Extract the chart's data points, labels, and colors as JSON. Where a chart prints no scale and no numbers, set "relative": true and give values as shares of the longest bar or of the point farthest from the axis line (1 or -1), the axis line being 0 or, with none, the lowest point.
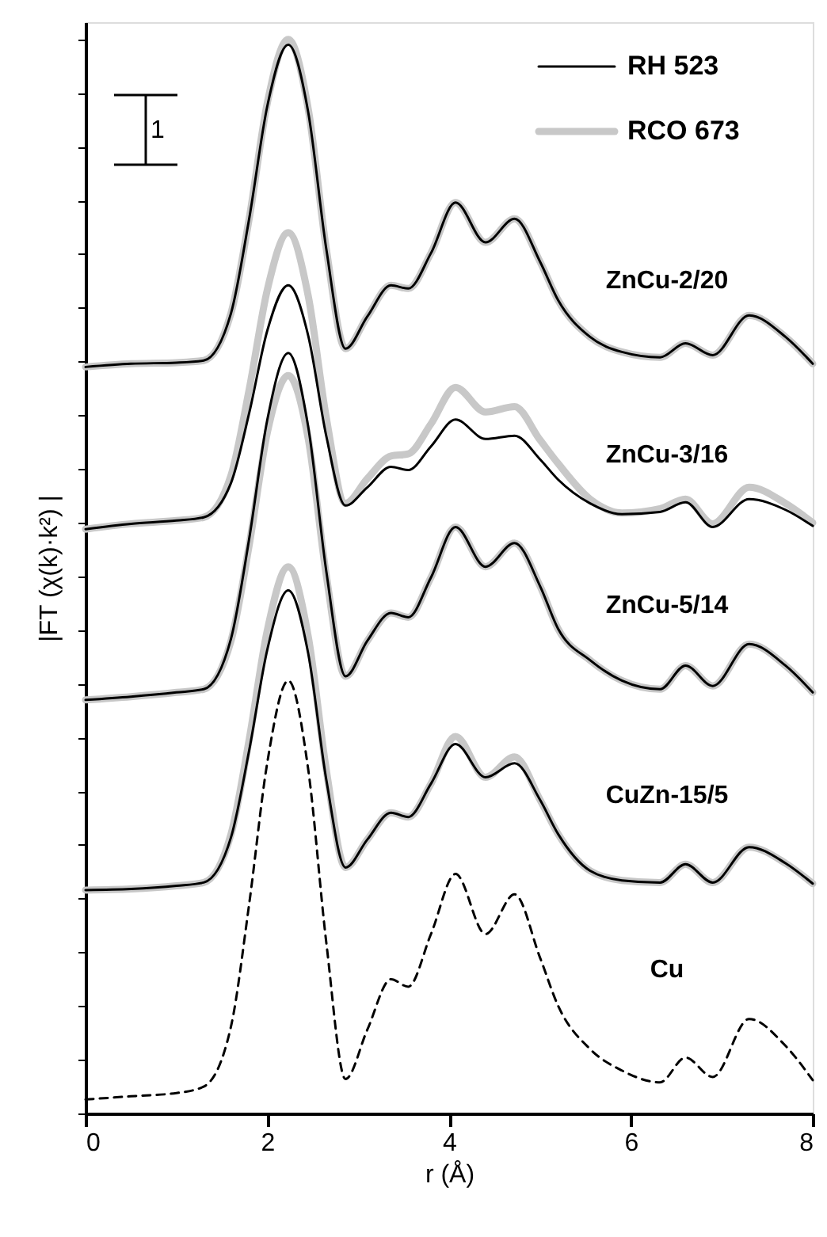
{
  "chart_data": {
    "type": "line",
    "relative": true,
    "xlabel": "r (Å)",
    "ylabel": "|FT (χ(k)·k²) |",
    "xlim": [
      0,
      8
    ],
    "xticks": [
      0,
      2,
      4,
      6,
      8
    ],
    "legend": "top right",
    "line_style": "solid",
    "marker": "none",
    "x": [
      0,
      0.5,
      1.0,
      1.3,
      1.6,
      1.8,
      2.0,
      2.23,
      2.45,
      2.65,
      2.86,
      3.1,
      3.36,
      3.55,
      3.8,
      4.07,
      4.4,
      4.72,
      5.0,
      5.2,
      5.55,
      5.9,
      6.32,
      6.6,
      6.9,
      7.3,
      7.7,
      8.0
    ],
    "series": [
      {
        "name": "RH 523",
        "color": "#000000",
        "values": [
          0.695,
          0.698,
          0.699,
          0.701,
          0.745,
          0.833,
          0.938,
          0.995,
          0.932,
          0.804,
          0.712,
          0.742,
          0.771,
          0.768,
          0.801,
          0.848,
          0.811,
          0.833,
          0.793,
          0.757,
          0.723,
          0.709,
          0.704,
          0.717,
          0.706,
          0.743,
          0.723,
          0.698
        ]
      },
      {
        "name": "RCO 673",
        "color": "#c8c8c8",
        "values": [
          0.695,
          0.698,
          0.699,
          0.701,
          0.745,
          0.833,
          0.941,
          1.0,
          0.935,
          0.804,
          0.712,
          0.742,
          0.771,
          0.768,
          0.801,
          0.848,
          0.811,
          0.833,
          0.793,
          0.757,
          0.723,
          0.709,
          0.704,
          0.717,
          0.706,
          0.743,
          0.723,
          0.698
        ]
      },
      {
        "color": "#000000",
        "values": [
          0.544,
          0.549,
          0.552,
          0.555,
          0.587,
          0.652,
          0.729,
          0.771,
          0.724,
          0.63,
          0.566,
          0.583,
          0.602,
          0.599,
          0.621,
          0.646,
          0.628,
          0.631,
          0.609,
          0.59,
          0.568,
          0.558,
          0.56,
          0.569,
          0.546,
          0.572,
          0.562,
          0.547
        ]
      },
      {
        "color": "#c8c8c8",
        "values": [
          0.544,
          0.549,
          0.552,
          0.555,
          0.594,
          0.674,
          0.767,
          0.82,
          0.761,
          0.647,
          0.568,
          0.591,
          0.612,
          0.614,
          0.642,
          0.676,
          0.653,
          0.658,
          0.627,
          0.605,
          0.572,
          0.559,
          0.563,
          0.572,
          0.549,
          0.583,
          0.568,
          0.55
        ]
      },
      {
        "color": "#000000",
        "values": [
          0.385,
          0.388,
          0.392,
          0.395,
          0.442,
          0.535,
          0.646,
          0.708,
          0.639,
          0.504,
          0.407,
          0.44,
          0.466,
          0.462,
          0.499,
          0.546,
          0.509,
          0.531,
          0.491,
          0.451,
          0.422,
          0.403,
          0.395,
          0.417,
          0.398,
          0.437,
          0.417,
          0.392
        ]
      },
      {
        "color": "#c8c8c8",
        "values": [
          0.385,
          0.388,
          0.392,
          0.395,
          0.44,
          0.529,
          0.634,
          0.687,
          0.628,
          0.5,
          0.407,
          0.44,
          0.466,
          0.462,
          0.499,
          0.546,
          0.509,
          0.531,
          0.491,
          0.451,
          0.422,
          0.403,
          0.395,
          0.417,
          0.398,
          0.437,
          0.417,
          0.392
        ]
      },
      {
        "color": "#000000",
        "values": [
          0.208,
          0.209,
          0.212,
          0.215,
          0.257,
          0.338,
          0.432,
          0.487,
          0.428,
          0.31,
          0.229,
          0.255,
          0.28,
          0.276,
          0.307,
          0.344,
          0.313,
          0.326,
          0.292,
          0.26,
          0.226,
          0.217,
          0.215,
          0.232,
          0.215,
          0.248,
          0.233,
          0.214
        ]
      },
      {
        "color": "#c8c8c8",
        "values": [
          0.208,
          0.209,
          0.212,
          0.215,
          0.26,
          0.348,
          0.45,
          0.509,
          0.444,
          0.319,
          0.229,
          0.255,
          0.28,
          0.276,
          0.307,
          0.351,
          0.313,
          0.332,
          0.292,
          0.26,
          0.226,
          0.217,
          0.215,
          0.232,
          0.215,
          0.248,
          0.233,
          0.214
        ]
      },
      {
        "color": "#000000",
        "line_style": "dashed",
        "values": [
          0.013,
          0.016,
          0.019,
          0.025,
          0.081,
          0.195,
          0.327,
          0.403,
          0.32,
          0.158,
          0.032,
          0.078,
          0.125,
          0.118,
          0.167,
          0.223,
          0.167,
          0.204,
          0.145,
          0.1,
          0.06,
          0.04,
          0.029,
          0.052,
          0.034,
          0.088,
          0.063,
          0.031
        ]
      }
    ],
    "annotations": [
      "ZnCu-2/20",
      "ZnCu-3/16",
      "ZnCu-5/14",
      "CuZn-15/5",
      "Cu",
      "1"
    ]
  }
}
